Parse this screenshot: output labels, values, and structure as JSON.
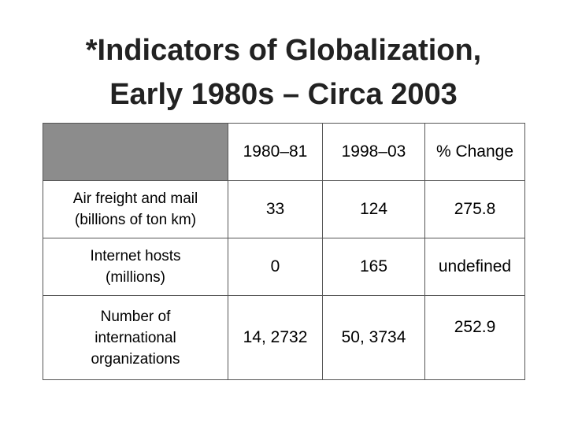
{
  "slide": {
    "title_line1": "*Indicators of Globalization,",
    "title_line2": "Early 1980s – Circa 2003"
  },
  "table": {
    "columns": [
      "",
      "1980–81",
      "1998–03",
      "% Change"
    ],
    "rows": [
      {
        "label_line1": "Air freight and mail",
        "label_line2": "(billions of ton km)",
        "label_line3": "",
        "v1": "33",
        "v2": "124",
        "change": "275.8"
      },
      {
        "label_line1": "Internet hosts",
        "label_line2": "(millions)",
        "label_line3": "",
        "v1": "0",
        "v2": "165",
        "change": "undefined"
      },
      {
        "label_line1": "Number of",
        "label_line2": "international",
        "label_line3": "organizations",
        "v1": "14, 2732",
        "v2": "50, 3734",
        "change": "252.9"
      }
    ]
  }
}
